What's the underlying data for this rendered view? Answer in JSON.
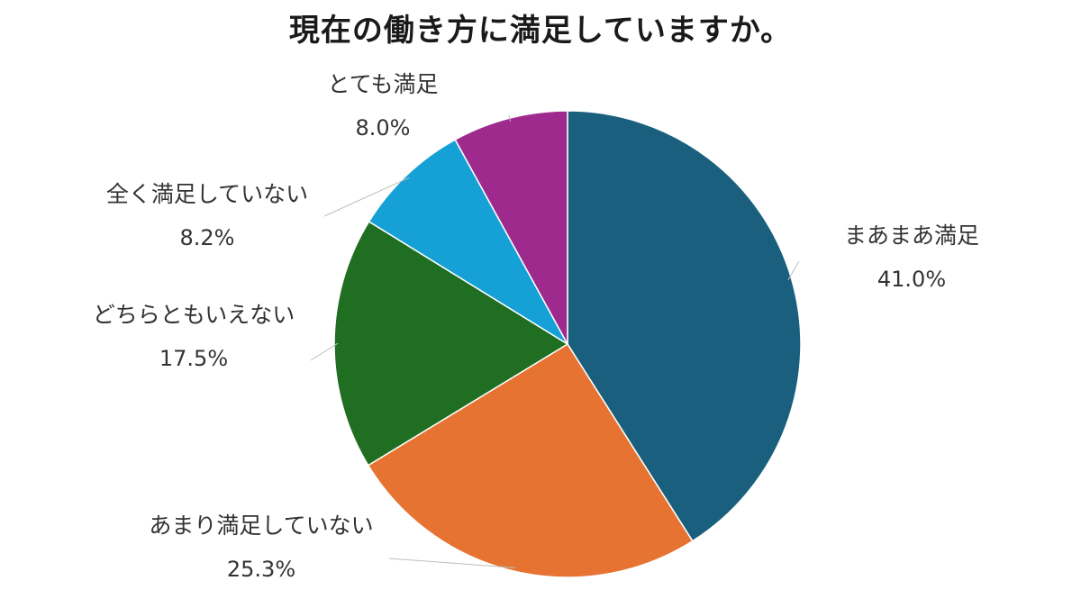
{
  "chart_data": {
    "type": "pie",
    "title": "現在の働き方に満足していますか。",
    "slices": [
      {
        "label": "まあまあ満足",
        "value": 41.0,
        "value_label": "41.0%",
        "color": "#1a5f7e"
      },
      {
        "label": "あまり満足していない",
        "value": 25.3,
        "value_label": "25.3%",
        "color": "#e67331"
      },
      {
        "label": "どちらともいえない",
        "value": 17.5,
        "value_label": "17.5%",
        "color": "#1f6e22"
      },
      {
        "label": "全く満足していない",
        "value": 8.2,
        "value_label": "8.2%",
        "color": "#15a0d6"
      },
      {
        "label": "とても満足",
        "value": 8.0,
        "value_label": "8.0%",
        "color": "#9e2a8e"
      }
    ]
  }
}
